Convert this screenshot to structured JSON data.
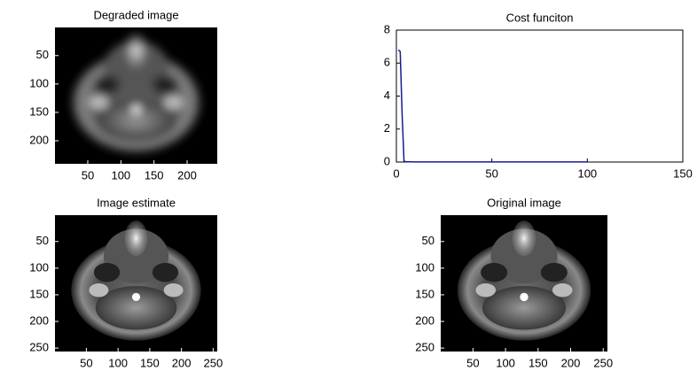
{
  "chart_data": [
    {
      "type": "image",
      "title": "Degraded image",
      "blurred": true,
      "xlim": [
        0.5,
        245.5
      ],
      "ylim": [
        0.5,
        240.5
      ],
      "xticks": [
        50,
        100,
        150,
        200
      ],
      "yticks": [
        50,
        100,
        150,
        200
      ]
    },
    {
      "type": "line",
      "title": "Cost funciton",
      "x": [
        1,
        2,
        3,
        4,
        5,
        10,
        20,
        50,
        100
      ],
      "series": [
        {
          "color": "#1a1a8c",
          "values": [
            6.8,
            6.7,
            2.9,
            0.05,
            0.02,
            0.01,
            0.01,
            0.01,
            0.01
          ]
        }
      ],
      "xlim": [
        0,
        150
      ],
      "ylim": [
        0,
        8
      ],
      "xticks": [
        0,
        50,
        100,
        150
      ],
      "yticks": [
        0,
        2,
        4,
        6,
        8
      ]
    },
    {
      "type": "image",
      "title": "Image estimate",
      "blurred": false,
      "xlim": [
        0.5,
        256.5
      ],
      "ylim": [
        0.5,
        256.5
      ],
      "xticks": [
        50,
        100,
        150,
        200,
        250
      ],
      "yticks": [
        50,
        100,
        150,
        200,
        250
      ]
    },
    {
      "type": "image",
      "title": "Original image",
      "blurred": false,
      "xlim": [
        0.5,
        256.5
      ],
      "ylim": [
        0.5,
        256.5
      ],
      "xticks": [
        50,
        100,
        150,
        200,
        250
      ],
      "yticks": [
        50,
        100,
        150,
        200,
        250
      ]
    }
  ]
}
